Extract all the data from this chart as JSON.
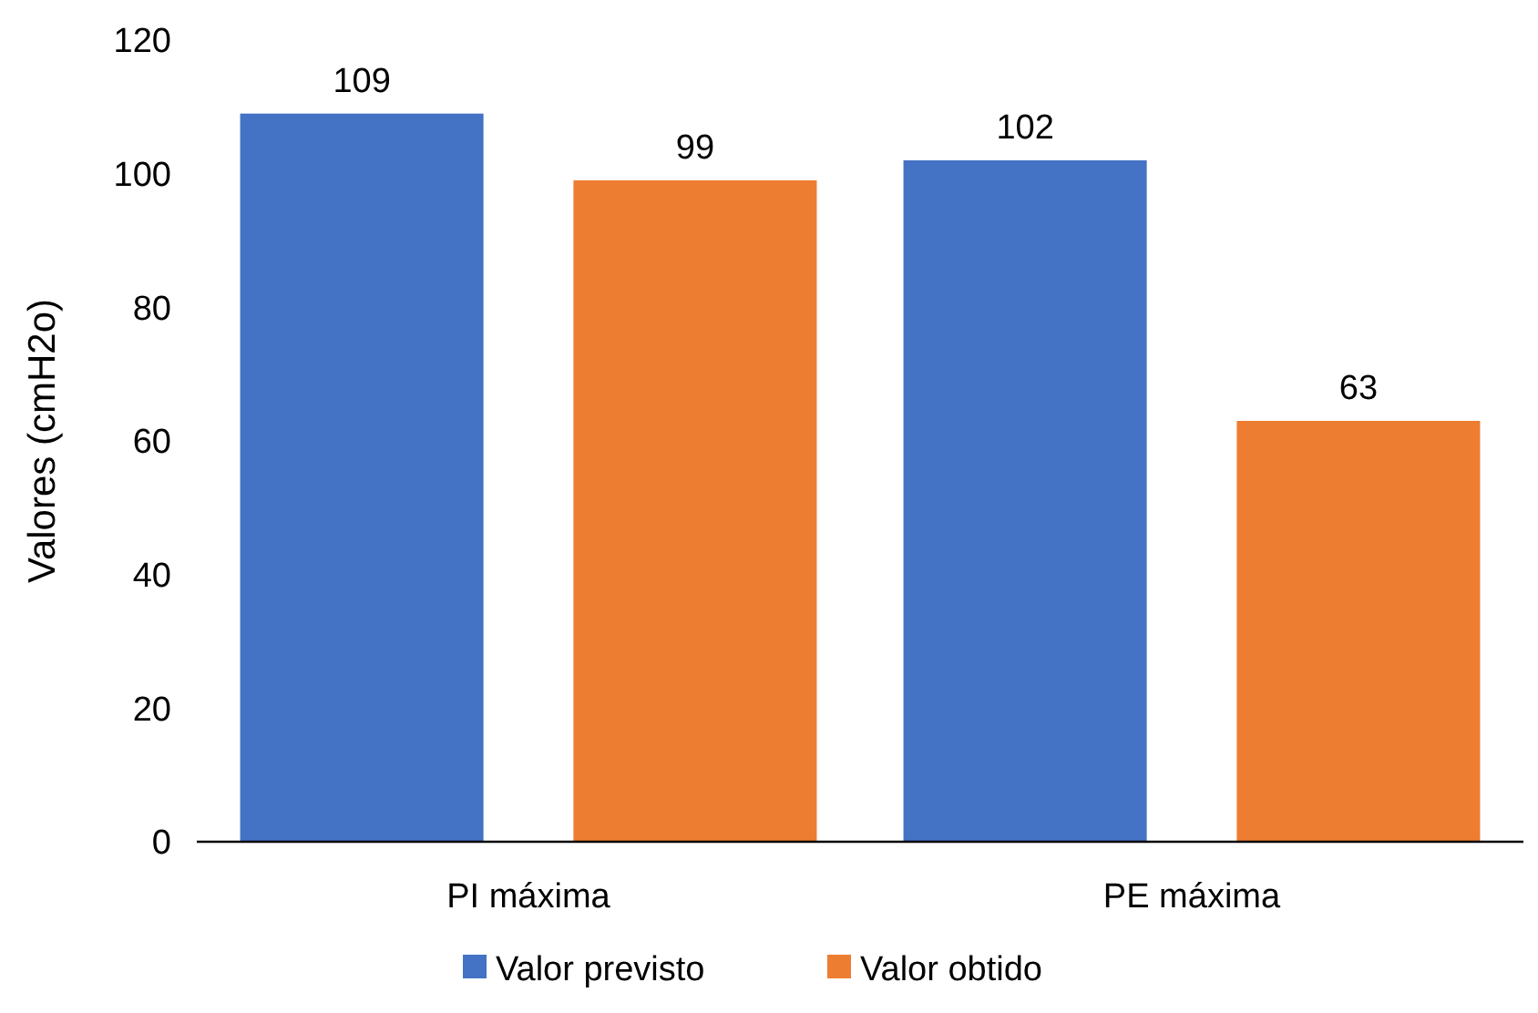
{
  "chart_data": {
    "type": "bar",
    "ylabel": "Valores (cmH2o)",
    "categories": [
      "PI máxima",
      "PE máxima"
    ],
    "series": [
      {
        "name": "Valor previsto",
        "color": "#4472c4",
        "values": [
          109,
          102
        ]
      },
      {
        "name": "Valor obtido",
        "color": "#ed7d31",
        "values": [
          99,
          63
        ]
      }
    ],
    "ylim": [
      0,
      120
    ],
    "yticks": [
      0,
      20,
      40,
      60,
      80,
      100,
      120
    ],
    "data_labels": true,
    "legend": "bottom",
    "grid": false
  }
}
